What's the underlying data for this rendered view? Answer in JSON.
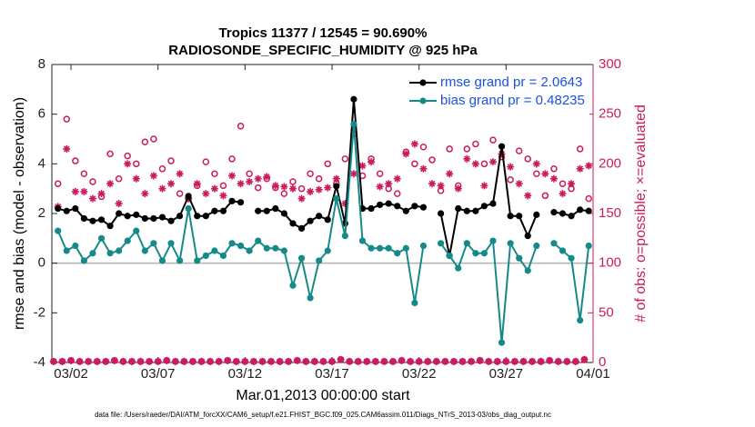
{
  "chart_data": {
    "type": "line",
    "title": [
      "Tropics 11377 / 12545 = 90.690%",
      "RADIOSONDE_SPECIFIC_HUMIDITY @ 925 hPa"
    ],
    "xlabel": "Mar.01,2013 00:00:00 start",
    "ylabel": "rmse and bias (model - observation)",
    "y2label": "# of obs: o=possible; ×=evaluated",
    "footnote": "data file: /Users/raeder/DAI/ATM_forcXX/CAM6_setup/f.e21.FHIST_BGC.f09_025.CAM6assim.011/Diags_NTrS_2013-03/obs_diag_output.nc",
    "xlim": [
      -0.1,
      31
    ],
    "xticks": [
      {
        "value": 1,
        "label": "03/02"
      },
      {
        "value": 6,
        "label": "03/07"
      },
      {
        "value": 11,
        "label": "03/12"
      },
      {
        "value": 16,
        "label": "03/17"
      },
      {
        "value": 21,
        "label": "03/22"
      },
      {
        "value": 26,
        "label": "03/27"
      },
      {
        "value": 31,
        "label": "04/01"
      }
    ],
    "ylim": [
      -4,
      8
    ],
    "yticks": [
      -4,
      -2,
      0,
      2,
      4,
      6,
      8
    ],
    "y2lim": [
      0,
      300
    ],
    "y2ticks": [
      0,
      50,
      100,
      150,
      200,
      250,
      300
    ],
    "y2_color": "#cc1a5e",
    "zero_line": true,
    "legend": "upper right",
    "legend_text_color": "#1a52e0",
    "x": [
      0.25,
      0.75,
      1.25,
      1.75,
      2.25,
      2.75,
      3.25,
      3.75,
      4.25,
      4.75,
      5.25,
      5.75,
      6.25,
      6.75,
      7.25,
      7.75,
      8.25,
      8.75,
      9.25,
      9.75,
      10.25,
      10.75,
      11.25,
      11.75,
      12.25,
      12.75,
      13.25,
      13.75,
      14.25,
      14.75,
      15.25,
      15.75,
      16.25,
      16.75,
      17.25,
      17.75,
      18.25,
      18.75,
      19.25,
      19.75,
      20.25,
      20.75,
      21.25,
      21.75,
      22.25,
      22.75,
      23.25,
      23.75,
      24.25,
      24.75,
      25.25,
      25.75,
      26.25,
      26.75,
      27.25,
      27.75,
      28.25,
      28.75,
      29.25,
      29.75,
      30.25,
      30.75
    ],
    "series": [
      {
        "name": "rmse grand pr = 2.0643",
        "color": "#000000",
        "marker": "dot",
        "line": true,
        "values": [
          2.2,
          2.1,
          2.2,
          1.8,
          1.7,
          1.75,
          1.5,
          2.0,
          1.9,
          1.95,
          1.8,
          1.8,
          1.85,
          1.7,
          1.9,
          2.7,
          1.9,
          1.9,
          2.1,
          2.1,
          2.5,
          2.45,
          null,
          2.1,
          2.1,
          2.2,
          2.0,
          1.6,
          1.4,
          1.7,
          1.9,
          1.75,
          3.1,
          1.6,
          6.6,
          2.2,
          2.2,
          2.35,
          2.4,
          2.3,
          2.1,
          2.3,
          2.25,
          null,
          2.0,
          0.3,
          2.2,
          2.1,
          2.1,
          2.3,
          2.4,
          4.7,
          1.9,
          1.9,
          1.1,
          1.95,
          null,
          2.05,
          2.0,
          1.9,
          2.15,
          2.1
        ]
      },
      {
        "name": "bias grand pr = 0.48235",
        "color": "#168a8a",
        "marker": "dot",
        "line": true,
        "values": [
          1.3,
          0.5,
          0.7,
          0.1,
          0.4,
          1.0,
          0.4,
          0.5,
          0.9,
          1.3,
          0.5,
          0.8,
          0.1,
          0.8,
          0.1,
          2.2,
          0.1,
          0.3,
          0.5,
          0.3,
          0.8,
          0.7,
          0.5,
          0.9,
          0.6,
          0.6,
          0.5,
          -0.9,
          0.2,
          -1.4,
          0.1,
          0.5,
          2.6,
          1.1,
          5.6,
          0.9,
          0.6,
          0.6,
          0.6,
          0.4,
          0.6,
          -1.6,
          0.7,
          null,
          0.8,
          0.3,
          -0.2,
          0.8,
          0.4,
          0.4,
          0.9,
          -3.2,
          0.8,
          0.2,
          -0.3,
          0.7,
          null,
          0.8,
          0.5,
          0.2,
          -2.3,
          0.7
        ]
      },
      {
        "color": "#cc1a5e",
        "marker": "circle",
        "line": false,
        "axis": "y2",
        "values": [
          180,
          245,
          203,
          190,
          182,
          167,
          210,
          185,
          208,
          200,
          222,
          225,
          195,
          203,
          170,
          165,
          178,
          202,
          190,
          178,
          205,
          238,
          190,
          176,
          185,
          176,
          170,
          182,
          175,
          190,
          185,
          200,
          180,
          205,
          230,
          188,
          205,
          190,
          175,
          170,
          212,
          200,
          217,
          204,
          173,
          215,
          178,
          215,
          220,
          200,
          224,
          207,
          184,
          213,
          205,
          190,
          168,
          195,
          180,
          175,
          215,
          165
        ]
      },
      {
        "color": "#cc1a5e",
        "marker": "asterisk",
        "line": false,
        "axis": "y2",
        "values": [
          157,
          215,
          172,
          172,
          165,
          170,
          180,
          160,
          200,
          185,
          170,
          188,
          175,
          180,
          190,
          165,
          180,
          170,
          175,
          168,
          188,
          180,
          182,
          185,
          187,
          178,
          177,
          175,
          165,
          172,
          174,
          176,
          185,
          160,
          190,
          198,
          202,
          177,
          180,
          185,
          210,
          220,
          195,
          180,
          178,
          190,
          175,
          205,
          200,
          178,
          202,
          210,
          197,
          180,
          168,
          200,
          190,
          185,
          170,
          180,
          195,
          198
        ]
      },
      {
        "color": "#cc1a5e",
        "marker": "circle",
        "line": false,
        "axis": "y2",
        "x": [
          0,
          0.5,
          1,
          1.5,
          2,
          2.5,
          3,
          3.5,
          4,
          4.5,
          5,
          5.5,
          6,
          6.5,
          7,
          7.5,
          8,
          8.5,
          9,
          9.5,
          10,
          10.5,
          11,
          11.5,
          12,
          12.5,
          13,
          13.5,
          14,
          14.5,
          15,
          15.5,
          16,
          16.5,
          17,
          17.5,
          18,
          18.5,
          19,
          19.5,
          20,
          20.5,
          21,
          21.5,
          22,
          22.5,
          23,
          23.5,
          24,
          24.5,
          25,
          25.5,
          26,
          26.5,
          27,
          27.5,
          28,
          28.5,
          29,
          29.5,
          30,
          30.5
        ],
        "values": [
          1,
          1,
          2,
          1,
          1,
          1,
          1,
          2,
          1,
          1,
          1,
          1,
          1,
          2,
          1,
          1,
          1,
          1,
          1,
          1,
          2,
          1,
          1,
          1,
          1,
          1,
          1,
          1,
          2,
          1,
          1,
          1,
          1,
          3,
          1,
          1,
          1,
          1,
          1,
          1,
          2,
          1,
          1,
          1,
          1,
          1,
          1,
          1,
          1,
          2,
          1,
          1,
          1,
          1,
          1,
          1,
          1,
          2,
          1,
          1,
          1,
          3
        ]
      },
      {
        "color": "#cc1a5e",
        "marker": "asterisk",
        "line": false,
        "axis": "y2",
        "x": [
          0,
          0.5,
          1,
          1.5,
          2,
          2.5,
          3,
          3.5,
          4,
          4.5,
          5,
          5.5,
          6,
          6.5,
          7,
          7.5,
          8,
          8.5,
          9,
          9.5,
          10,
          10.5,
          11,
          11.5,
          12,
          12.5,
          13,
          13.5,
          14,
          14.5,
          15,
          15.5,
          16,
          16.5,
          17,
          17.5,
          18,
          18.5,
          19,
          19.5,
          20,
          20.5,
          21,
          21.5,
          22,
          22.5,
          23,
          23.5,
          24,
          24.5,
          25,
          25.5,
          26,
          26.5,
          27,
          27.5,
          28,
          28.5,
          29,
          29.5,
          30,
          30.5
        ],
        "values": [
          1,
          1,
          2,
          1,
          1,
          1,
          1,
          2,
          1,
          1,
          1,
          1,
          1,
          2,
          1,
          1,
          1,
          1,
          1,
          1,
          2,
          1,
          1,
          1,
          1,
          1,
          1,
          1,
          2,
          1,
          1,
          1,
          1,
          3,
          1,
          1,
          1,
          1,
          1,
          1,
          2,
          1,
          1,
          1,
          1,
          1,
          1,
          1,
          1,
          2,
          1,
          1,
          1,
          1,
          1,
          1,
          1,
          2,
          1,
          1,
          1,
          3
        ]
      }
    ]
  }
}
